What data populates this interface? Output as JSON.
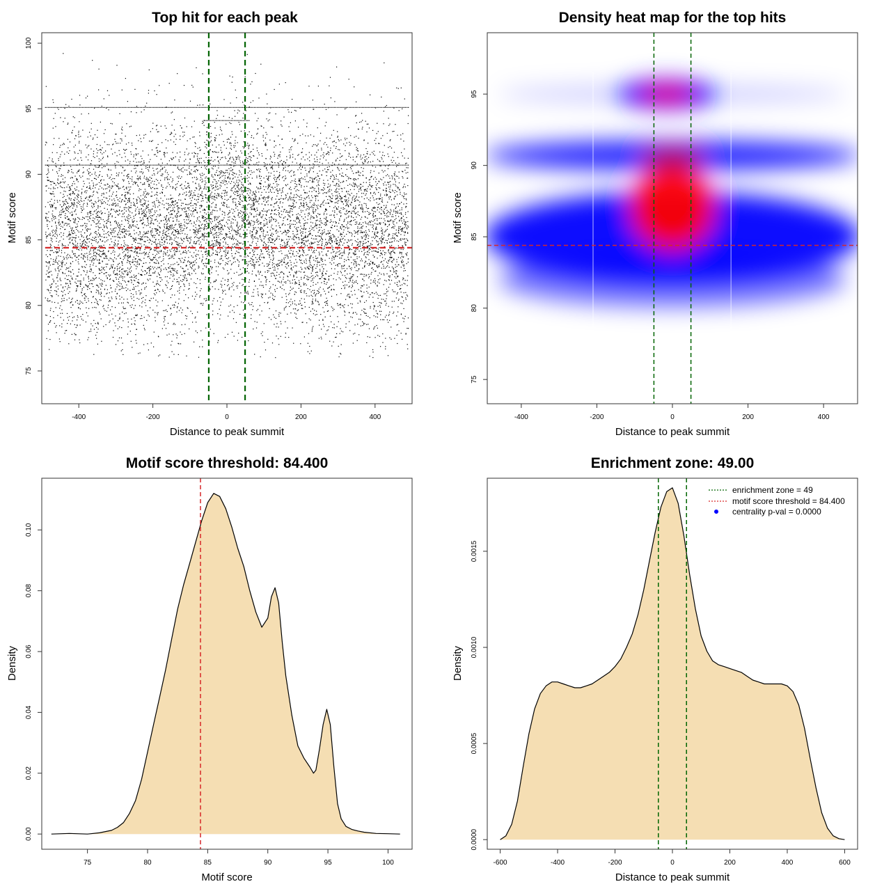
{
  "chart_data": [
    {
      "type": "scatter",
      "title": "Top hit for each peak",
      "xlabel": "Distance to peak summit",
      "ylabel": "Motif score",
      "xlim": [
        -500,
        500
      ],
      "ylim": [
        72.5,
        100.8
      ],
      "x_ticks": [
        -400,
        -200,
        0,
        200,
        400
      ],
      "x_tick_labels": [
        "-400",
        "-200",
        "0",
        "200",
        "400"
      ],
      "y_ticks": [
        75,
        80,
        85,
        90,
        95,
        100
      ],
      "y_tick_labels": [
        "75",
        "80",
        "85",
        "90",
        "95",
        "100"
      ],
      "x_range_of_points": [
        -490,
        490
      ],
      "y_mode": 85.5,
      "y_spread_sd": 4.0,
      "horizontal_point_bands": [
        90.7,
        95.1
      ],
      "reference_lines": {
        "vertical": [
          -49,
          49
        ],
        "vertical_color": "#006400",
        "horizontal": [
          84.4
        ],
        "horizontal_color": "#d62728"
      },
      "point_color": "#000000"
    },
    {
      "type": "heatmap",
      "title": "Density heat map for the top hits",
      "xlabel": "Distance to peak summit",
      "ylabel": "Motif score",
      "xlim": [
        -490,
        490
      ],
      "ylim": [
        73.3,
        99.3
      ],
      "x_ticks": [
        -400,
        -200,
        0,
        200,
        400
      ],
      "x_tick_labels": [
        "-400",
        "-200",
        "0",
        "200",
        "400"
      ],
      "y_ticks": [
        75,
        80,
        85,
        90,
        95
      ],
      "y_tick_labels": [
        "75",
        "80",
        "85",
        "90",
        "95"
      ],
      "density_colors": [
        "#ffffff",
        "#0000ff",
        "#ff0000"
      ],
      "hotspots": [
        {
          "x": 0,
          "y": 87,
          "level": "high"
        },
        {
          "x": -15,
          "y": 95,
          "level": "high"
        },
        {
          "x": 0,
          "y": 90.5,
          "level": "medium"
        },
        {
          "x": -300,
          "y": 85,
          "level": "low"
        },
        {
          "x": 300,
          "y": 85,
          "level": "low"
        },
        {
          "x": -400,
          "y": 90.5,
          "level": "low"
        },
        {
          "x": 400,
          "y": 90.5,
          "level": "low"
        }
      ],
      "reference_lines": {
        "vertical": [
          -49,
          49
        ],
        "vertical_color": "#006400",
        "horizontal": [
          84.4
        ],
        "horizontal_color": "#d62728"
      }
    },
    {
      "type": "area",
      "title": "Motif score threshold: 84.400",
      "xlabel": "Motif score",
      "ylabel": "Density",
      "xlim": [
        71.2,
        102.0
      ],
      "ylim": [
        -0.005,
        0.117
      ],
      "x_ticks": [
        75,
        80,
        85,
        90,
        95,
        100
      ],
      "x_tick_labels": [
        "75",
        "80",
        "85",
        "90",
        "95",
        "100"
      ],
      "y_ticks": [
        0,
        0.02,
        0.04,
        0.06,
        0.08,
        0.1
      ],
      "y_tick_labels": [
        "0.00",
        "0.02",
        "0.04",
        "0.06",
        "0.08",
        "0.10"
      ],
      "x": [
        72,
        73.5,
        75,
        76,
        77,
        77.5,
        78,
        78.5,
        79,
        79.5,
        80,
        80.5,
        81,
        81.5,
        82,
        82.5,
        83,
        83.5,
        84,
        84.5,
        85,
        85.5,
        86,
        86.5,
        87,
        87.5,
        88,
        88.5,
        89,
        89.5,
        90,
        90.3,
        90.6,
        90.9,
        91.2,
        91.5,
        92,
        92.5,
        93,
        93.5,
        93.8,
        94,
        94.3,
        94.6,
        94.9,
        95.2,
        95.5,
        95.8,
        96.1,
        96.5,
        97,
        97.5,
        98,
        99,
        100,
        101
      ],
      "y": [
        0.0,
        0.0002,
        0.0,
        0.0004,
        0.0012,
        0.0022,
        0.0038,
        0.0068,
        0.011,
        0.018,
        0.027,
        0.036,
        0.045,
        0.054,
        0.064,
        0.074,
        0.082,
        0.089,
        0.096,
        0.103,
        0.109,
        0.112,
        0.111,
        0.107,
        0.101,
        0.094,
        0.088,
        0.08,
        0.073,
        0.068,
        0.071,
        0.078,
        0.081,
        0.076,
        0.063,
        0.052,
        0.039,
        0.029,
        0.025,
        0.022,
        0.02,
        0.021,
        0.028,
        0.036,
        0.041,
        0.036,
        0.022,
        0.01,
        0.005,
        0.0025,
        0.0015,
        0.001,
        0.0006,
        0.0002,
        0.0001,
        0.0
      ],
      "fill_color": "#f5deb3",
      "reference_lines": {
        "vertical": [
          84.4
        ],
        "vertical_color": "#d62728"
      }
    },
    {
      "type": "area",
      "title": "Enrichment zone: 49.00",
      "xlabel": "Distance to peak summit",
      "ylabel": "Density",
      "xlim": [
        -645,
        645
      ],
      "ylim": [
        -5e-05,
        0.00188
      ],
      "x_ticks": [
        -600,
        -400,
        -200,
        0,
        200,
        400,
        600
      ],
      "x_tick_labels": [
        "-600",
        "-400",
        "-200",
        "0",
        "200",
        "400",
        "600"
      ],
      "y_ticks": [
        0,
        0.0005,
        0.001,
        0.0015
      ],
      "y_tick_labels": [
        "0.0000",
        "0.0005",
        "0.0010",
        "0.0015"
      ],
      "x": [
        -600,
        -580,
        -560,
        -540,
        -520,
        -500,
        -480,
        -460,
        -440,
        -420,
        -400,
        -380,
        -360,
        -340,
        -320,
        -300,
        -280,
        -260,
        -240,
        -220,
        -200,
        -180,
        -160,
        -140,
        -120,
        -100,
        -80,
        -60,
        -40,
        -20,
        0,
        20,
        40,
        60,
        80,
        100,
        120,
        140,
        160,
        180,
        200,
        220,
        240,
        260,
        280,
        300,
        320,
        340,
        360,
        380,
        400,
        420,
        440,
        460,
        480,
        500,
        520,
        540,
        560,
        580,
        600
      ],
      "y": [
        0.0,
        2e-05,
        8e-05,
        0.0002,
        0.00038,
        0.00055,
        0.00068,
        0.00076,
        0.0008,
        0.00082,
        0.00082,
        0.00081,
        0.0008,
        0.00079,
        0.00079,
        0.0008,
        0.00081,
        0.00083,
        0.00085,
        0.00087,
        0.0009,
        0.00094,
        0.001,
        0.00107,
        0.00117,
        0.0013,
        0.00145,
        0.0016,
        0.00173,
        0.00181,
        0.00183,
        0.00175,
        0.00158,
        0.00138,
        0.0012,
        0.00106,
        0.00098,
        0.00093,
        0.00091,
        0.0009,
        0.00089,
        0.00088,
        0.00087,
        0.00085,
        0.00083,
        0.00082,
        0.00081,
        0.00081,
        0.00081,
        0.00081,
        0.0008,
        0.00077,
        0.0007,
        0.00058,
        0.00042,
        0.00027,
        0.00014,
        6e-05,
        2e-05,
        5e-06,
        0.0
      ],
      "fill_color": "#f5deb3",
      "reference_lines": {
        "vertical": [
          -49,
          49
        ],
        "vertical_color": "#006400"
      },
      "legend": {
        "position": "top-right",
        "entries": [
          {
            "label": "enrichment zone = 49",
            "symbol": "dotted-line",
            "color": "#006400"
          },
          {
            "label": "motif score threshold = 84.400",
            "symbol": "dotted-line",
            "color": "#d62728"
          },
          {
            "label": "centrality p-val = 0.0000",
            "symbol": "dot",
            "color": "#0000ff"
          }
        ]
      }
    }
  ]
}
